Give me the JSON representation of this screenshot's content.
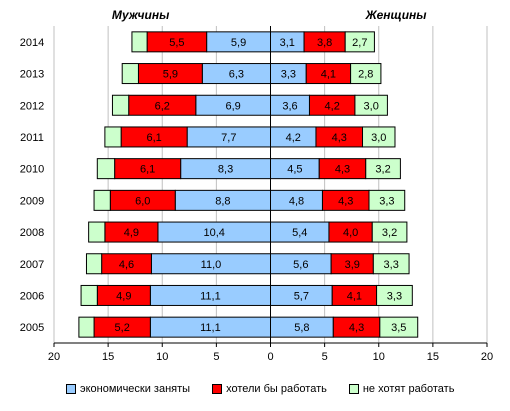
{
  "chart_data": {
    "type": "bar",
    "orientation": "horizontal-diverging",
    "left_header": "Мужчины",
    "right_header": "Женщины",
    "categories": [
      "2014",
      "2013",
      "2012",
      "2011",
      "2010",
      "2009",
      "2008",
      "2007",
      "2006",
      "2005"
    ],
    "xlim": [
      -20,
      20
    ],
    "xticks": [
      "20",
      "15",
      "10",
      "5",
      "0",
      "5",
      "10",
      "15",
      "20"
    ],
    "grid": true,
    "legend_position": "bottom",
    "legend": [
      {
        "key": "employed",
        "label": "экономически заняты",
        "color": "#99CCFF"
      },
      {
        "key": "want",
        "label": "хотели бы работать",
        "color": "#FF0000"
      },
      {
        "key": "dontwant",
        "label": "не хотят работать",
        "color": "#CCFFCC"
      }
    ],
    "men": {
      "employed": [
        5.9,
        6.3,
        6.9,
        7.7,
        8.3,
        8.8,
        10.4,
        11.0,
        11.1,
        11.1
      ],
      "employed_labels": [
        "5,9",
        "6,3",
        "6,9",
        "7,7",
        "8,3",
        "8,8",
        "10,4",
        "11,0",
        "11,1",
        "11,1"
      ],
      "want": [
        5.5,
        5.9,
        6.2,
        6.1,
        6.1,
        6.0,
        4.9,
        4.6,
        4.9,
        5.2
      ],
      "want_labels": [
        "5,5",
        "5,9",
        "6,2",
        "6,1",
        "6,1",
        "6,0",
        "4,9",
        "4,6",
        "4,9",
        "5,2"
      ],
      "dontwant": [
        1.4,
        1.5,
        1.5,
        1.5,
        1.6,
        1.5,
        1.5,
        1.4,
        1.5,
        1.4
      ]
    },
    "women": {
      "employed": [
        3.1,
        3.3,
        3.6,
        4.2,
        4.5,
        4.8,
        5.4,
        5.6,
        5.7,
        5.8
      ],
      "employed_labels": [
        "3,1",
        "3,3",
        "3,6",
        "4,2",
        "4,5",
        "4,8",
        "5,4",
        "5,6",
        "5,7",
        "5,8"
      ],
      "want": [
        3.8,
        4.1,
        4.2,
        4.3,
        4.3,
        4.3,
        4.0,
        3.9,
        4.1,
        4.3
      ],
      "want_labels": [
        "3,8",
        "4,1",
        "4,2",
        "4,3",
        "4,3",
        "4,3",
        "4,0",
        "3,9",
        "4,1",
        "4,3"
      ],
      "dontwant": [
        2.7,
        2.8,
        3.0,
        3.0,
        3.2,
        3.3,
        3.2,
        3.3,
        3.3,
        3.5
      ],
      "dontwant_labels": [
        "2,7",
        "2,8",
        "3,0",
        "3,0",
        "3,2",
        "3,3",
        "3,2",
        "3,3",
        "3,3",
        "3,5"
      ]
    }
  }
}
